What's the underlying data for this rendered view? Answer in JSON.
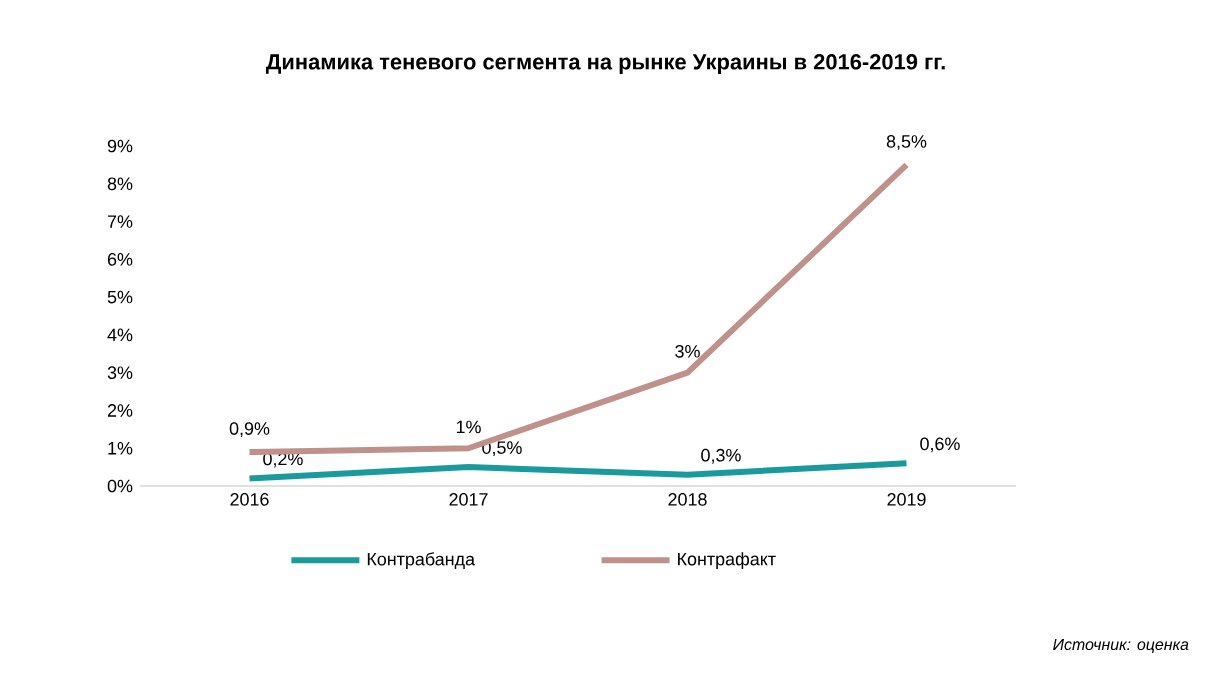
{
  "chart_data": {
    "type": "line",
    "title": "Динамика теневого сегмента на рынке Украины в 2016-2019 гг.",
    "categories": [
      "2016",
      "2017",
      "2018",
      "2019"
    ],
    "series": [
      {
        "name": "Контрабанда",
        "color": "#1a9a9c",
        "values": [
          0.2,
          0.5,
          0.3,
          0.6
        ],
        "value_labels": [
          "0,2%",
          "0,5%",
          "0,3%",
          "0,6%"
        ]
      },
      {
        "name": "Контрафакт",
        "color": "#c0918a",
        "values": [
          0.9,
          1,
          3,
          8.5
        ],
        "value_labels": [
          "0,9%",
          "1%",
          "3%",
          "8,5%"
        ]
      }
    ],
    "ylim": [
      0,
      9
    ],
    "yticks": [
      {
        "value": 0,
        "label": "0%"
      },
      {
        "value": 1,
        "label": "1%"
      },
      {
        "value": 2,
        "label": "2%"
      },
      {
        "value": 3,
        "label": "3%"
      },
      {
        "value": 4,
        "label": "4%"
      },
      {
        "value": 5,
        "label": "5%"
      },
      {
        "value": 6,
        "label": "6%"
      },
      {
        "value": 7,
        "label": "7%"
      },
      {
        "value": 8,
        "label": "8%"
      },
      {
        "value": 9,
        "label": "9%"
      }
    ],
    "grid": false,
    "legend": "bottom",
    "marker": "none",
    "line_style": "solid",
    "annotations": [
      "Источник: оценка"
    ]
  }
}
